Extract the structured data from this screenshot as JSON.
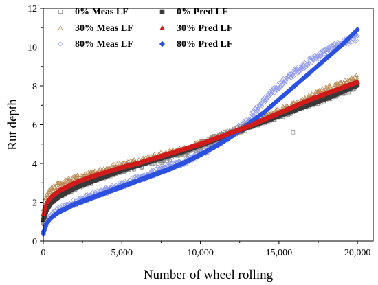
{
  "chart_data": {
    "type": "scatter",
    "xlabel": "Number of wheel rolling",
    "ylabel": "Rut depth",
    "xlim": [
      0,
      21000
    ],
    "ylim": [
      0,
      12
    ],
    "x_ticks": [
      0,
      5000,
      10000,
      15000,
      20000
    ],
    "x_tick_labels": [
      "0",
      "5,000",
      "10,000",
      "15,000",
      "20,000"
    ],
    "y_ticks": [
      0,
      2,
      4,
      6,
      8,
      10,
      12
    ],
    "y_tick_labels": [
      "0",
      "2",
      "4",
      "6",
      "8",
      "10",
      "12"
    ],
    "grid": false,
    "legend_position": "top-left",
    "series": [
      {
        "name": "0% Meas LF",
        "kind": "measured",
        "marker": "open-square",
        "color": "#8a8a8a",
        "x": [
          0,
          200,
          500,
          1000,
          2000,
          3000,
          4000,
          5000,
          6000,
          7000,
          8000,
          9000,
          10000,
          11000,
          12000,
          13000,
          14000,
          15000,
          16000,
          17000,
          18000,
          19000,
          20000
        ],
        "y": [
          0.9,
          1.6,
          2.1,
          2.4,
          2.8,
          3.1,
          3.4,
          3.7,
          3.9,
          4.1,
          4.3,
          4.6,
          4.9,
          5.3,
          5.6,
          5.9,
          6.2,
          6.5,
          6.8,
          7.1,
          7.4,
          7.7,
          8.0
        ],
        "outliers": [
          [
            15900,
            5.6
          ]
        ]
      },
      {
        "name": "0% Pred LF",
        "kind": "predicted",
        "marker": "filled-square",
        "color": "#3a3a3a",
        "x": [
          0,
          200,
          500,
          1000,
          2000,
          3000,
          4000,
          5000,
          6000,
          7000,
          8000,
          9000,
          10000,
          11000,
          12000,
          13000,
          14000,
          15000,
          16000,
          17000,
          18000,
          19000,
          20000
        ],
        "y": [
          1.1,
          1.6,
          2.0,
          2.3,
          2.75,
          3.05,
          3.35,
          3.65,
          3.9,
          4.15,
          4.4,
          4.65,
          4.95,
          5.25,
          5.55,
          5.85,
          6.15,
          6.45,
          6.75,
          7.05,
          7.35,
          7.7,
          8.05
        ]
      },
      {
        "name": "30% Meas LF",
        "kind": "measured",
        "marker": "open-triangle",
        "color": "#b8864e",
        "x": [
          0,
          200,
          500,
          1000,
          2000,
          3000,
          4000,
          5000,
          6000,
          7000,
          8000,
          9000,
          10000,
          11000,
          12000,
          13000,
          14000,
          15000,
          16000,
          17000,
          18000,
          19000,
          20000
        ],
        "y": [
          1.5,
          2.3,
          2.6,
          2.9,
          3.2,
          3.4,
          3.7,
          3.9,
          4.1,
          4.3,
          4.5,
          4.7,
          5.0,
          5.3,
          5.6,
          5.9,
          6.3,
          6.7,
          7.0,
          7.4,
          7.8,
          8.1,
          8.4
        ]
      },
      {
        "name": "30% Pred LF",
        "kind": "predicted",
        "marker": "filled-triangle",
        "color": "#d01c1c",
        "x": [
          0,
          200,
          500,
          1000,
          2000,
          3000,
          4000,
          5000,
          6000,
          7000,
          8000,
          9000,
          10000,
          11000,
          12000,
          13000,
          14000,
          15000,
          16000,
          17000,
          18000,
          19000,
          20000
        ],
        "y": [
          1.4,
          2.0,
          2.3,
          2.6,
          3.0,
          3.3,
          3.55,
          3.8,
          4.0,
          4.25,
          4.5,
          4.75,
          5.0,
          5.3,
          5.6,
          5.9,
          6.25,
          6.6,
          6.95,
          7.3,
          7.6,
          7.9,
          8.2
        ]
      },
      {
        "name": "80% Meas LF",
        "kind": "measured",
        "marker": "open-diamond",
        "color": "#8f99ee",
        "x": [
          0,
          200,
          500,
          1000,
          2000,
          3000,
          4000,
          5000,
          6000,
          7000,
          8000,
          9000,
          10000,
          11000,
          12000,
          13000,
          14000,
          15000,
          16000,
          17000,
          18000,
          19000,
          20000
        ],
        "y": [
          0.3,
          1.0,
          1.3,
          1.6,
          2.0,
          2.3,
          2.6,
          2.9,
          3.2,
          3.5,
          3.8,
          4.1,
          4.5,
          5.0,
          5.5,
          6.2,
          7.2,
          8.0,
          8.7,
          9.3,
          9.8,
          10.2,
          10.5
        ]
      },
      {
        "name": "80% Pred LF",
        "kind": "predicted",
        "marker": "filled-diamond",
        "color": "#2d52e0",
        "x": [
          0,
          200,
          500,
          1000,
          2000,
          3000,
          4000,
          5000,
          6000,
          7000,
          8000,
          9000,
          10000,
          11000,
          12000,
          13000,
          14000,
          15000,
          16000,
          17000,
          18000,
          19000,
          20000
        ],
        "y": [
          0.4,
          0.9,
          1.2,
          1.5,
          1.9,
          2.2,
          2.5,
          2.8,
          3.1,
          3.4,
          3.7,
          4.05,
          4.45,
          4.9,
          5.4,
          6.0,
          6.6,
          7.3,
          8.0,
          8.7,
          9.4,
          10.1,
          10.9
        ]
      }
    ]
  }
}
